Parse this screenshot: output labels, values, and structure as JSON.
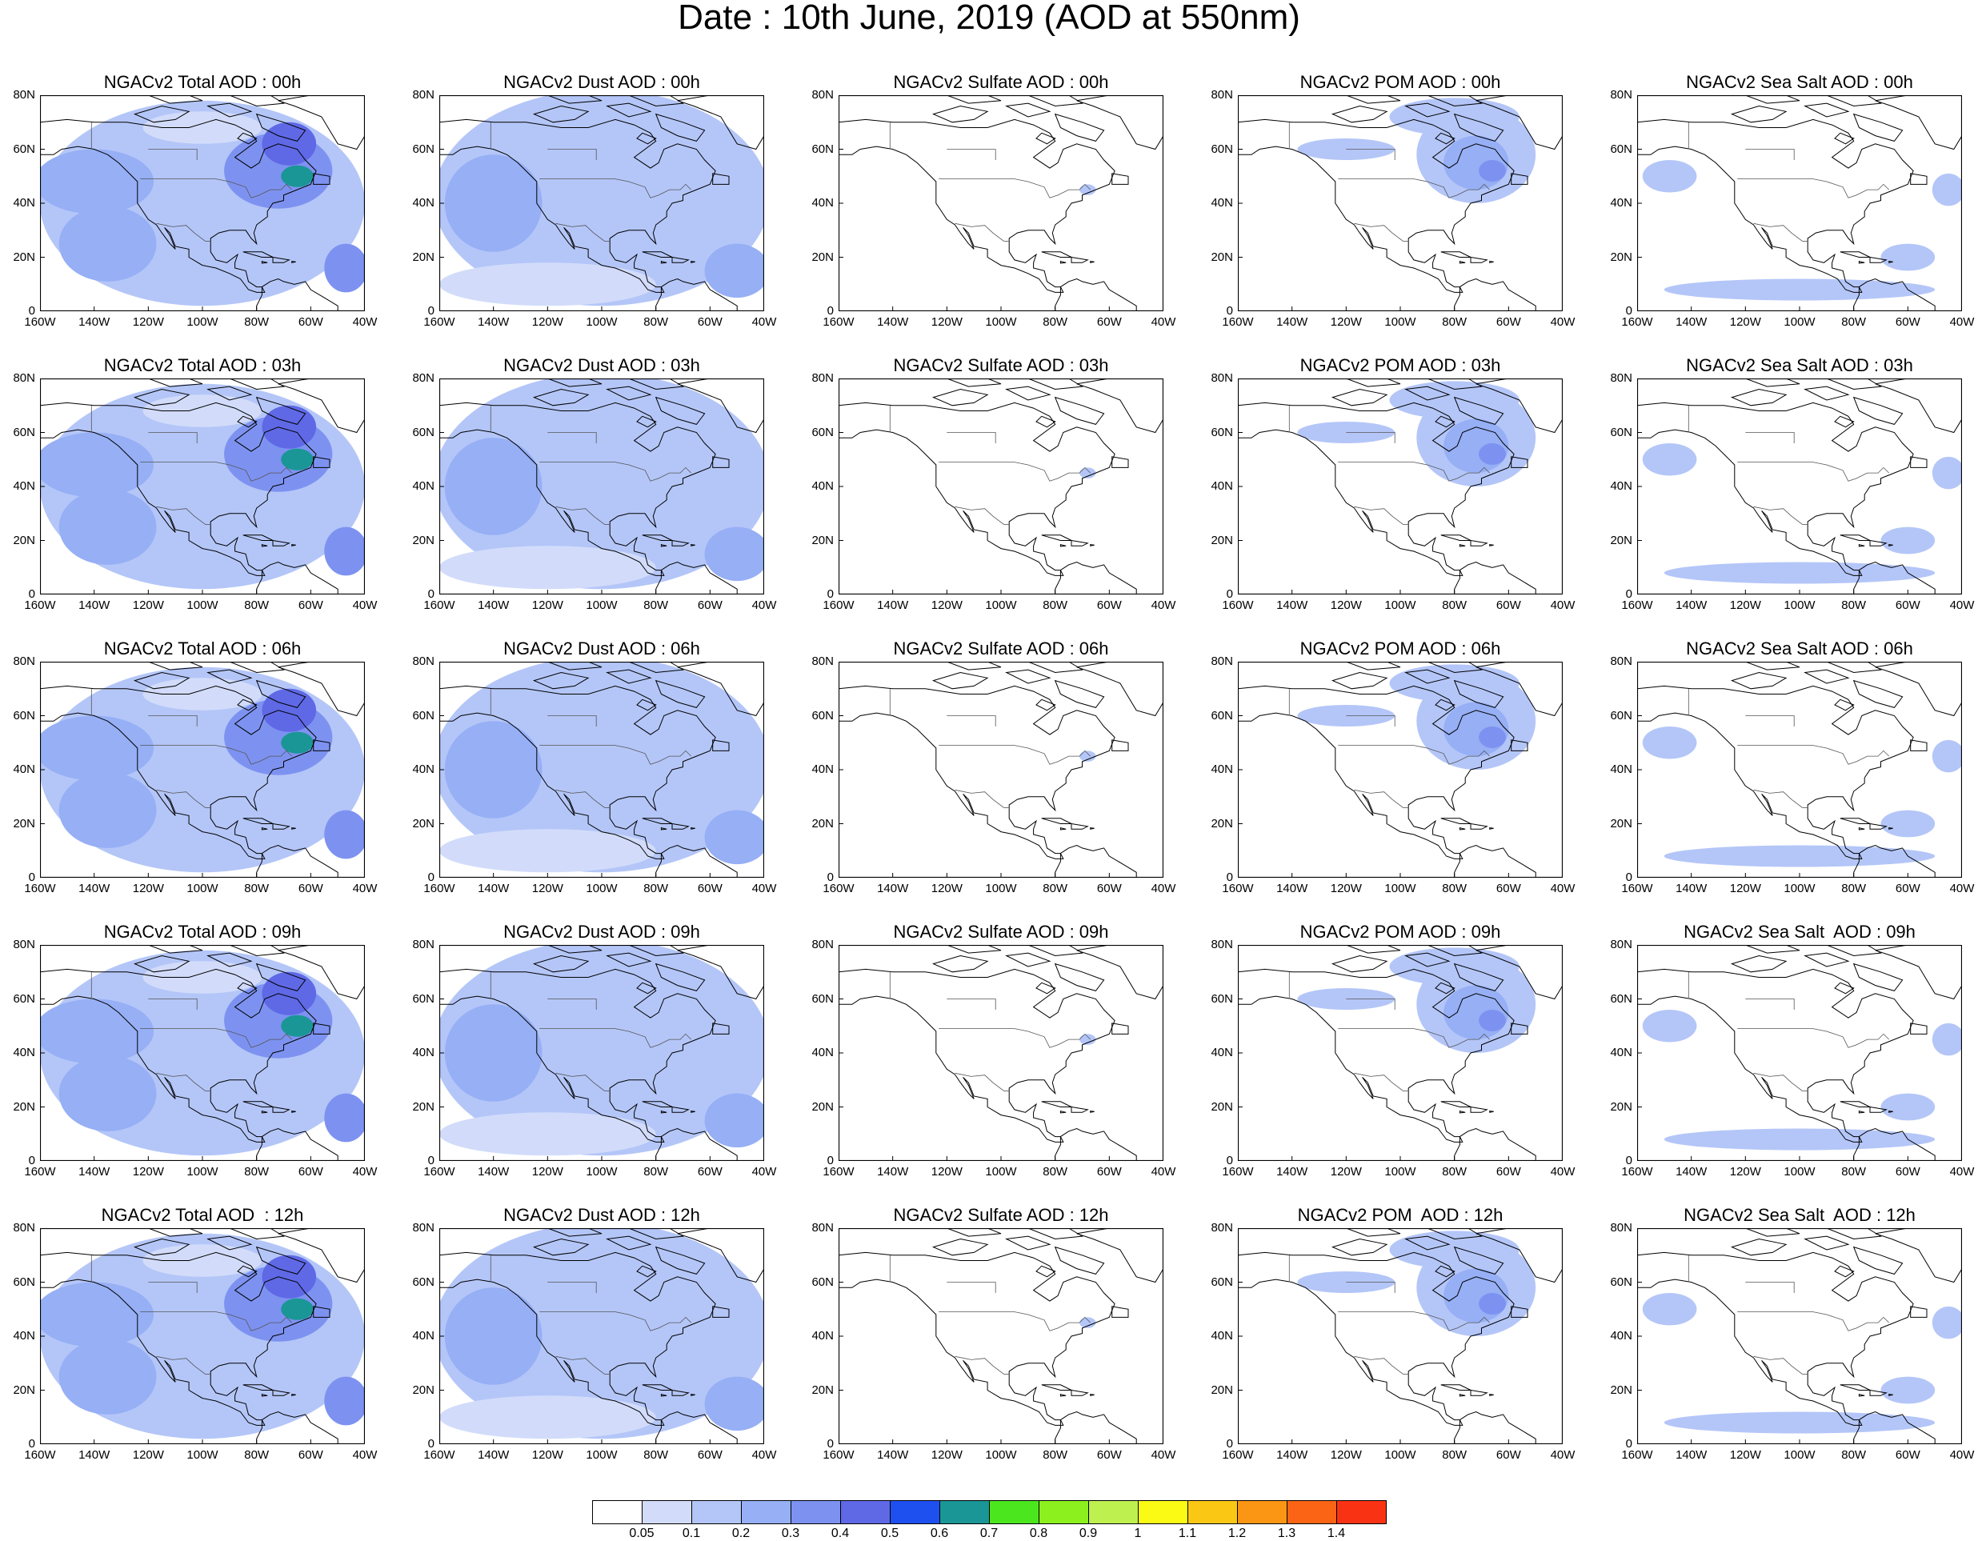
{
  "title": "Date : 10th June, 2019 (AOD at 550nm)",
  "ylabels": [
    "80N",
    "60N",
    "40N",
    "20N",
    "0"
  ],
  "xlabels": [
    "160W",
    "140W",
    "120W",
    "100W",
    "80W",
    "60W",
    "40W"
  ],
  "domain": {
    "lon_min": -160,
    "lon_max": -40,
    "lat_min": 0,
    "lat_max": 80
  },
  "columns": [
    "Total",
    "Dust",
    "Sulfate",
    "POM",
    "SeaSalt"
  ],
  "hours": [
    "00h",
    "03h",
    "06h",
    "09h",
    "12h"
  ],
  "panels": [
    [
      "NGACv2 Total AOD : 00h",
      "NGACv2 Dust AOD : 00h",
      "NGACv2 Sulfate AOD : 00h",
      "NGACv2 POM AOD : 00h",
      "NGACv2 Sea Salt AOD : 00h"
    ],
    [
      "NGACv2 Total AOD : 03h",
      "NGACv2 Dust AOD : 03h",
      "NGACv2 Sulfate AOD : 03h",
      "NGACv2 POM AOD : 03h",
      "NGACv2 Sea Salt AOD : 03h"
    ],
    [
      "NGACv2 Total AOD : 06h",
      "NGACv2 Dust AOD : 06h",
      "NGACv2 Sulfate AOD : 06h",
      "NGACv2 POM AOD : 06h",
      "NGACv2 Sea Salt AOD : 06h"
    ],
    [
      "NGACv2 Total AOD : 09h",
      "NGACv2 Dust AOD : 09h",
      "NGACv2 Sulfate AOD : 09h",
      "NGACv2 POM AOD : 09h",
      "NGACv2 Sea Salt  AOD : 09h"
    ],
    [
      "NGACv2 Total AOD  : 12h",
      "NGACv2 Dust AOD : 12h",
      "NGACv2 Sulfate AOD : 12h",
      "NGACv2 POM  AOD : 12h",
      "NGACv2 Sea Salt  AOD : 12h"
    ]
  ],
  "colorbar": {
    "colors": [
      "#ffffff",
      "#d2dcfa",
      "#b4c6f8",
      "#96aff5",
      "#7d92f0",
      "#5f69e6",
      "#1e50f0",
      "#1a9696",
      "#4be61e",
      "#8cf01e",
      "#bef050",
      "#fafa14",
      "#fac814",
      "#fa9614",
      "#fa6414",
      "#fa3214"
    ],
    "labels": [
      "0.05",
      "0.1",
      "0.2",
      "0.3",
      "0.4",
      "0.5",
      "0.6",
      "0.7",
      "0.8",
      "0.9",
      "1",
      "1.1",
      "1.2",
      "1.3",
      "1.4"
    ]
  },
  "coastline_color": "#000000",
  "aod_fields": {
    "Total": [
      {
        "lon": -100,
        "lat": 40,
        "rx": 60,
        "ry": 38,
        "level": 1
      },
      {
        "lon": -140,
        "lat": 48,
        "rx": 22,
        "ry": 12,
        "level": 2
      },
      {
        "lon": -135,
        "lat": 25,
        "rx": 18,
        "ry": 14,
        "level": 2
      },
      {
        "lon": -72,
        "lat": 52,
        "rx": 20,
        "ry": 14,
        "level": 3
      },
      {
        "lon": -68,
        "lat": 62,
        "rx": 10,
        "ry": 8,
        "level": 4
      },
      {
        "lon": -65,
        "lat": 50,
        "rx": 6,
        "ry": 4,
        "level": 6
      },
      {
        "lon": -47,
        "lat": 16,
        "rx": 8,
        "ry": 9,
        "level": 3
      },
      {
        "lon": -100,
        "lat": 68,
        "rx": 22,
        "ry": 6,
        "level": 0
      }
    ],
    "Dust": [
      {
        "lon": -100,
        "lat": 42,
        "rx": 62,
        "ry": 40,
        "level": 1
      },
      {
        "lon": -140,
        "lat": 40,
        "rx": 18,
        "ry": 18,
        "level": 2
      },
      {
        "lon": -50,
        "lat": 15,
        "rx": 12,
        "ry": 10,
        "level": 2
      },
      {
        "lon": -120,
        "lat": 10,
        "rx": 40,
        "ry": 8,
        "level": 0
      }
    ],
    "Sulfate": [
      {
        "lon": -68,
        "lat": 45,
        "rx": 3,
        "ry": 2,
        "level": 1
      }
    ],
    "POM": [
      {
        "lon": -72,
        "lat": 58,
        "rx": 22,
        "ry": 18,
        "level": 1
      },
      {
        "lon": -120,
        "lat": 60,
        "rx": 18,
        "ry": 4,
        "level": 1
      },
      {
        "lon": -72,
        "lat": 55,
        "rx": 12,
        "ry": 10,
        "level": 2
      },
      {
        "lon": -66,
        "lat": 52,
        "rx": 5,
        "ry": 4,
        "level": 3
      },
      {
        "lon": -80,
        "lat": 72,
        "rx": 24,
        "ry": 7,
        "level": 1
      }
    ],
    "SeaSalt": [
      {
        "lon": -148,
        "lat": 50,
        "rx": 10,
        "ry": 6,
        "level": 1
      },
      {
        "lon": -45,
        "lat": 45,
        "rx": 6,
        "ry": 6,
        "level": 1
      },
      {
        "lon": -100,
        "lat": 8,
        "rx": 50,
        "ry": 4,
        "level": 1
      },
      {
        "lon": -60,
        "lat": 20,
        "rx": 10,
        "ry": 5,
        "level": 1
      }
    ]
  }
}
